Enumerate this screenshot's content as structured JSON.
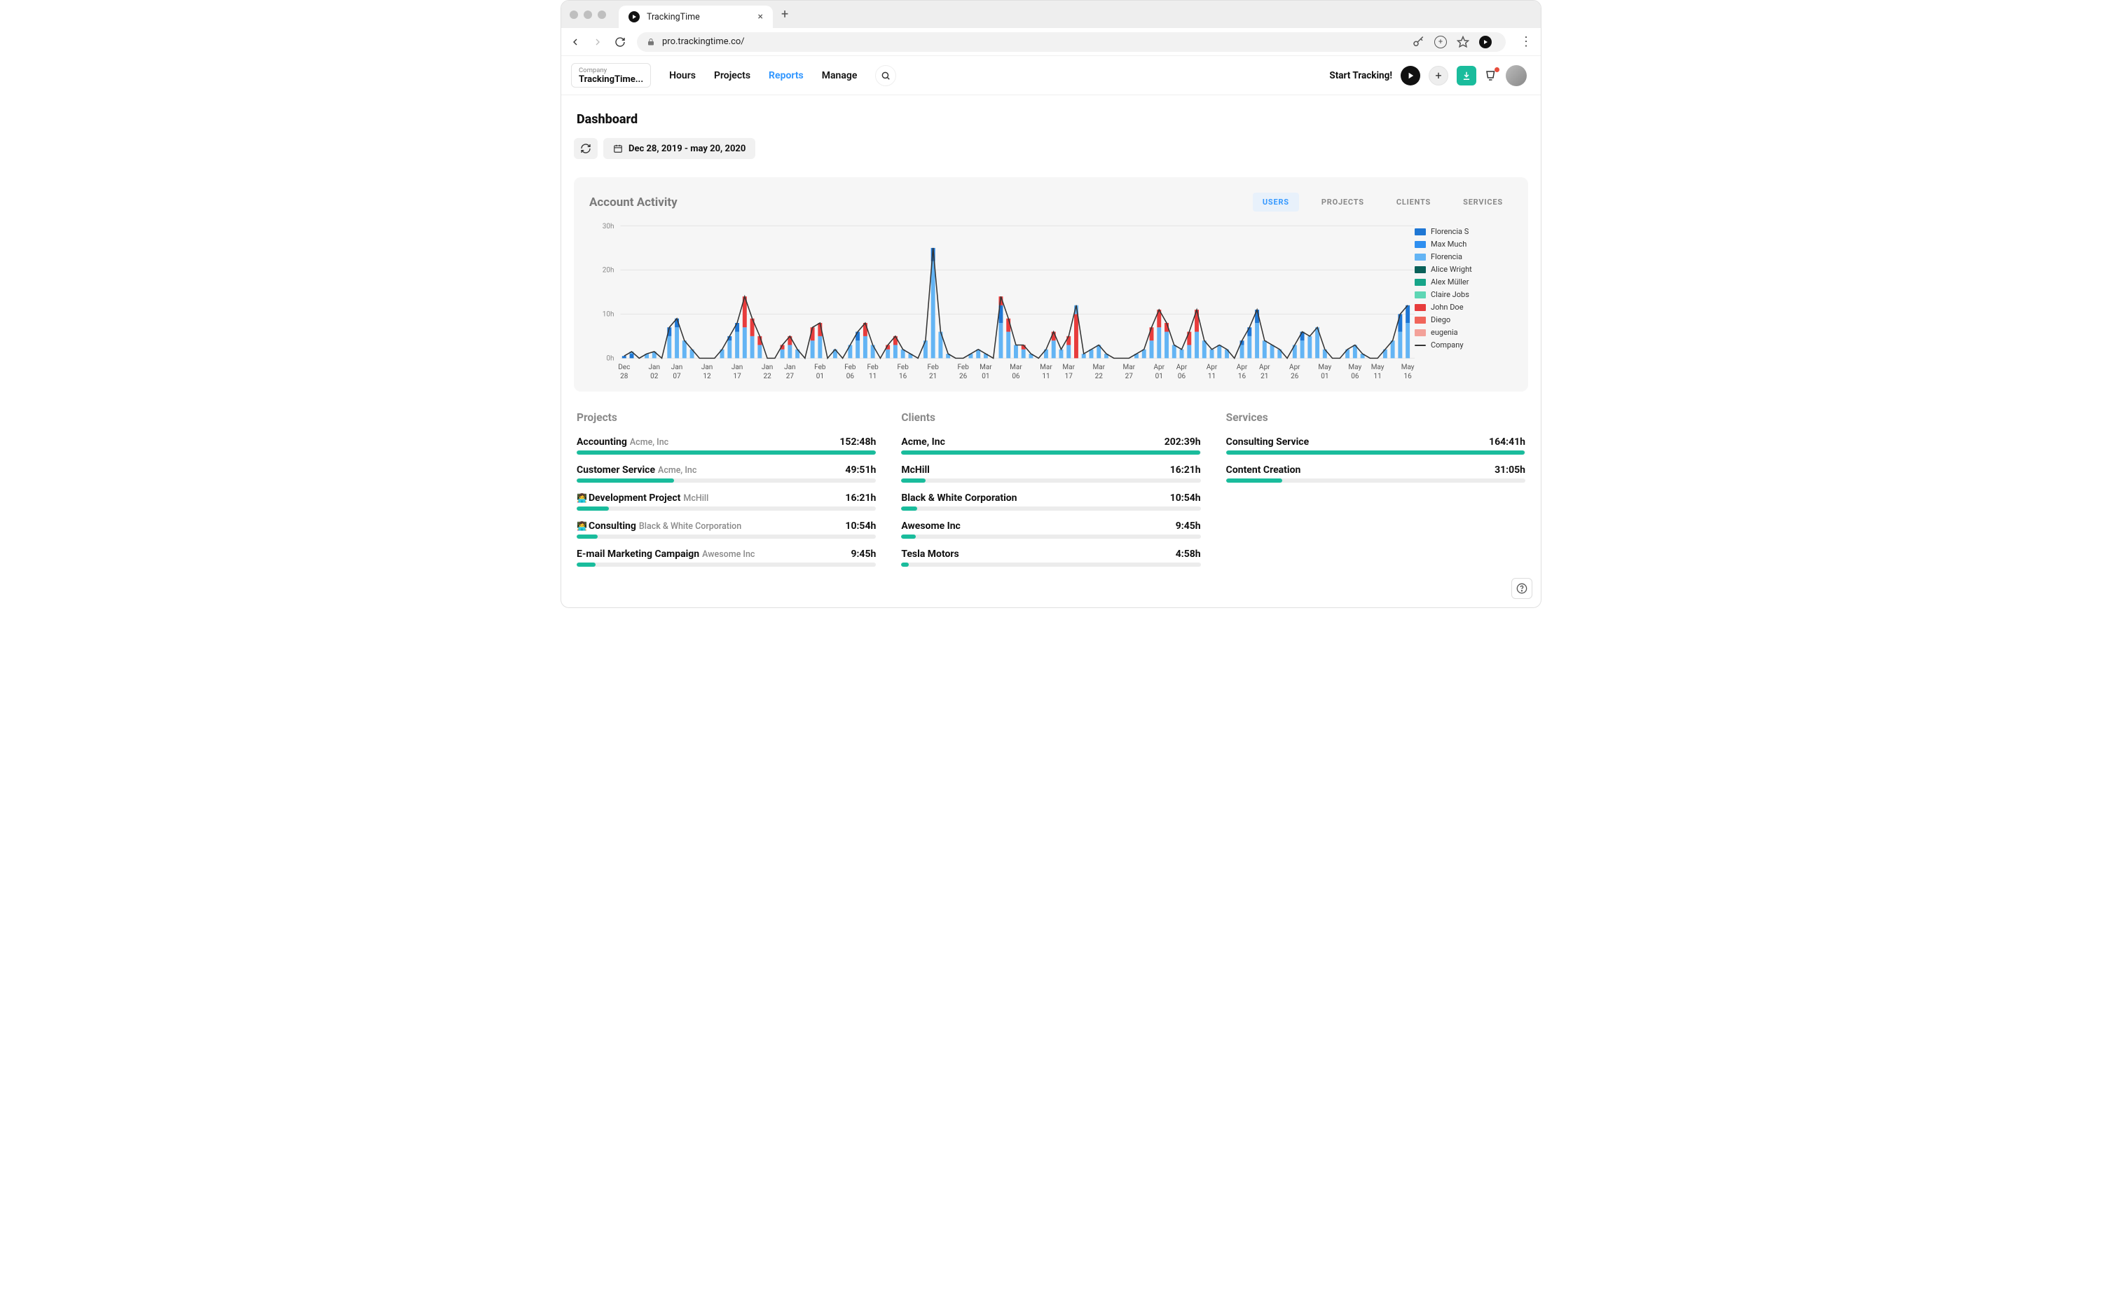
{
  "browser": {
    "tab_title": "TrackingTime",
    "url": "pro.trackingtime.co/"
  },
  "header": {
    "company_label": "Company",
    "company_name": "TrackingTime...",
    "nav": [
      {
        "label": "Hours",
        "active": false
      },
      {
        "label": "Projects",
        "active": false
      },
      {
        "label": "Reports",
        "active": true
      },
      {
        "label": "Manage",
        "active": false
      }
    ],
    "start_tracking": "Start Tracking!"
  },
  "page": {
    "title": "Dashboard",
    "date_range": "Dec 28, 2019 - may 20, 2020"
  },
  "activity": {
    "title": "Account Activity",
    "tabs": [
      {
        "label": "USERS",
        "active": true
      },
      {
        "label": "PROJECTS",
        "active": false
      },
      {
        "label": "CLIENTS",
        "active": false
      },
      {
        "label": "SERVICES",
        "active": false
      }
    ],
    "chart": {
      "type": "stacked-bar-with-line",
      "ylim": [
        0,
        30
      ],
      "ytick_step": 10,
      "y_unit": "h",
      "grid_color": "#e6e6e6",
      "background": "#f6f6f6",
      "x_labels": [
        "Dec 28",
        "Jan 02",
        "Jan 07",
        "Jan 12",
        "Jan 17",
        "Jan 22",
        "Jan 27",
        "Feb 01",
        "Feb 06",
        "Feb 11",
        "Feb 16",
        "Feb 21",
        "Feb 26",
        "Mar 01",
        "Mar 06",
        "Mar 11",
        "Mar 17",
        "Mar 22",
        "Mar 27",
        "Apr 01",
        "Apr 06",
        "Apr 11",
        "Apr 16",
        "Apr 21",
        "Apr 26",
        "May 01",
        "May 06",
        "May 11",
        "May 16"
      ],
      "line_color": "#333333",
      "series": [
        {
          "name": "Florencia S",
          "color": "#1f77d4"
        },
        {
          "name": "Max Much",
          "color": "#2e8ff0"
        },
        {
          "name": "Florencia",
          "color": "#63b4f4"
        },
        {
          "name": "Alice Wright",
          "color": "#0a6159"
        },
        {
          "name": "Alex Müller",
          "color": "#17a589"
        },
        {
          "name": "Claire Jobs",
          "color": "#5ed6b4"
        },
        {
          "name": "John Doe",
          "color": "#e73c3c"
        },
        {
          "name": "Diego",
          "color": "#f0655a"
        },
        {
          "name": "eugenia",
          "color": "#f3a199"
        }
      ],
      "company_label": "Company",
      "days": [
        {
          "stacks": [
            {
              "s": 0,
              "v": 0.5
            }
          ]
        },
        {
          "stacks": [
            {
              "s": 0,
              "v": 1
            },
            {
              "s": 2,
              "v": 0.5
            }
          ]
        },
        {
          "stacks": []
        },
        {
          "stacks": [
            {
              "s": 2,
              "v": 1
            }
          ]
        },
        {
          "stacks": [
            {
              "s": 2,
              "v": 1.5
            }
          ]
        },
        {
          "stacks": []
        },
        {
          "stacks": [
            {
              "s": 2,
              "v": 5
            },
            {
              "s": 0,
              "v": 2
            }
          ]
        },
        {
          "stacks": [
            {
              "s": 2,
              "v": 7
            },
            {
              "s": 0,
              "v": 2
            }
          ]
        },
        {
          "stacks": [
            {
              "s": 2,
              "v": 4
            }
          ]
        },
        {
          "stacks": [
            {
              "s": 2,
              "v": 2
            }
          ]
        },
        {
          "stacks": []
        },
        {
          "stacks": []
        },
        {
          "stacks": []
        },
        {
          "stacks": [
            {
              "s": 2,
              "v": 2
            }
          ]
        },
        {
          "stacks": [
            {
              "s": 2,
              "v": 4
            },
            {
              "s": 0,
              "v": 1
            }
          ]
        },
        {
          "stacks": [
            {
              "s": 2,
              "v": 6
            },
            {
              "s": 0,
              "v": 2
            }
          ]
        },
        {
          "stacks": [
            {
              "s": 2,
              "v": 7
            },
            {
              "s": 6,
              "v": 7
            }
          ]
        },
        {
          "stacks": [
            {
              "s": 2,
              "v": 5
            },
            {
              "s": 6,
              "v": 4
            }
          ]
        },
        {
          "stacks": [
            {
              "s": 2,
              "v": 3
            },
            {
              "s": 6,
              "v": 2
            }
          ]
        },
        {
          "stacks": []
        },
        {
          "stacks": []
        },
        {
          "stacks": [
            {
              "s": 2,
              "v": 2
            },
            {
              "s": 6,
              "v": 1
            }
          ]
        },
        {
          "stacks": [
            {
              "s": 2,
              "v": 3
            },
            {
              "s": 6,
              "v": 2
            }
          ]
        },
        {
          "stacks": [
            {
              "s": 2,
              "v": 2
            }
          ]
        },
        {
          "stacks": []
        },
        {
          "stacks": [
            {
              "s": 2,
              "v": 4
            },
            {
              "s": 6,
              "v": 3
            }
          ]
        },
        {
          "stacks": [
            {
              "s": 2,
              "v": 5
            },
            {
              "s": 6,
              "v": 3
            }
          ]
        },
        {
          "stbars": [
            {
              "s": 2,
              "v": 3
            }
          ]
        },
        {
          "stacks": [
            {
              "s": 2,
              "v": 2
            }
          ]
        },
        {
          "stacks": []
        },
        {
          "stacks": [
            {
              "s": 2,
              "v": 3
            }
          ]
        },
        {
          "stacks": [
            {
              "s": 2,
              "v": 4
            },
            {
              "s": 0,
              "v": 2
            }
          ]
        },
        {
          "stacks": [
            {
              "s": 2,
              "v": 5
            },
            {
              "s": 6,
              "v": 3
            }
          ]
        },
        {
          "stacks": [
            {
              "s": 2,
              "v": 3
            }
          ]
        },
        {
          "stacks": []
        },
        {
          "stacks": [
            {
              "s": 2,
              "v": 2
            },
            {
              "s": 6,
              "v": 1
            }
          ]
        },
        {
          "stacks": [
            {
              "s": 2,
              "v": 3
            },
            {
              "s": 6,
              "v": 2
            }
          ]
        },
        {
          "stacks": [
            {
              "s": 2,
              "v": 2
            }
          ]
        },
        {
          "stacks": [
            {
              "s": 2,
              "v": 1
            }
          ]
        },
        {
          "stacks": []
        },
        {
          "stacks": [
            {
              "s": 2,
              "v": 4
            }
          ]
        },
        {
          "stacks": [
            {
              "s": 2,
              "v": 22
            },
            {
              "s": 0,
              "v": 3
            }
          ]
        },
        {
          "stacks": [
            {
              "s": 2,
              "v": 6
            }
          ]
        },
        {
          "stacks": [
            {
              "s": 2,
              "v": 1
            }
          ]
        },
        {
          "stacks": []
        },
        {
          "stacks": []
        },
        {
          "stacks": [
            {
              "s": 2,
              "v": 1
            }
          ]
        },
        {
          "stacks": [
            {
              "s": 2,
              "v": 2
            }
          ]
        },
        {
          "stacks": [
            {
              "s": 2,
              "v": 1
            }
          ]
        },
        {
          "stacks": []
        },
        {
          "stacks": [
            {
              "s": 2,
              "v": 8
            },
            {
              "s": 0,
              "v": 4
            },
            {
              "s": 6,
              "v": 2
            }
          ]
        },
        {
          "stacks": [
            {
              "s": 2,
              "v": 6
            },
            {
              "s": 6,
              "v": 3
            }
          ]
        },
        {
          "stacks": [
            {
              "s": 2,
              "v": 3
            }
          ]
        },
        {
          "stacks": [
            {
              "s": 2,
              "v": 2
            },
            {
              "s": 6,
              "v": 1
            }
          ]
        },
        {
          "stacks": [
            {
              "s": 2,
              "v": 1
            }
          ]
        },
        {
          "stacks": []
        },
        {
          "stacks": [
            {
              "s": 2,
              "v": 2
            }
          ]
        },
        {
          "stacks": [
            {
              "s": 2,
              "v": 4
            },
            {
              "s": 6,
              "v": 2
            }
          ]
        },
        {
          "stacks": [
            {
              "s": 2,
              "v": 2
            }
          ]
        },
        {
          "stacks": [
            {
              "s": 2,
              "v": 3
            },
            {
              "s": 6,
              "v": 2
            }
          ]
        },
        {
          "stacks": [
            {
              "s": 6,
              "v": 10
            },
            {
              "s": 2,
              "v": 2
            }
          ]
        },
        {
          "stacks": [
            {
              "s": 2,
              "v": 1
            }
          ]
        },
        {
          "stacks": [
            {
              "s": 2,
              "v": 2
            }
          ]
        },
        {
          "stacks": [
            {
              "s": 2,
              "v": 3
            }
          ]
        },
        {
          "stacks": [
            {
              "s": 2,
              "v": 1
            }
          ]
        },
        {
          "stacks": []
        },
        {
          "stacks": []
        },
        {
          "stacks": []
        },
        {
          "stacks": [
            {
              "s": 2,
              "v": 1
            }
          ]
        },
        {
          "stacks": [
            {
              "s": 2,
              "v": 2
            }
          ]
        },
        {
          "stacks": [
            {
              "s": 2,
              "v": 4
            },
            {
              "s": 6,
              "v": 3
            }
          ]
        },
        {
          "stacks": [
            {
              "s": 2,
              "v": 7
            },
            {
              "s": 6,
              "v": 4
            }
          ]
        },
        {
          "stacks": [
            {
              "s": 2,
              "v": 6
            },
            {
              "s": 6,
              "v": 2
            }
          ]
        },
        {
          "stacks": [
            {
              "s": 2,
              "v": 3
            }
          ]
        },
        {
          "stacks": [
            {
              "s": 2,
              "v": 2
            }
          ]
        },
        {
          "stacks": [
            {
              "s": 2,
              "v": 3
            },
            {
              "s": 6,
              "v": 3
            }
          ]
        },
        {
          "stacks": [
            {
              "s": 2,
              "v": 6
            },
            {
              "s": 6,
              "v": 5
            }
          ]
        },
        {
          "stacks": [
            {
              "s": 2,
              "v": 4
            }
          ]
        },
        {
          "stacks": [
            {
              "s": 2,
              "v": 2
            }
          ]
        },
        {
          "stacks": [
            {
              "s": 2,
              "v": 3
            }
          ]
        },
        {
          "stacks": [
            {
              "s": 2,
              "v": 2
            }
          ]
        },
        {
          "stacks": []
        },
        {
          "stacks": [
            {
              "s": 2,
              "v": 3
            },
            {
              "s": 0,
              "v": 1
            }
          ]
        },
        {
          "stacks": [
            {
              "s": 2,
              "v": 5
            },
            {
              "s": 0,
              "v": 2
            }
          ]
        },
        {
          "stacks": [
            {
              "s": 2,
              "v": 8
            },
            {
              "s": 0,
              "v": 3
            }
          ]
        },
        {
          "stacks": [
            {
              "s": 2,
              "v": 4
            }
          ]
        },
        {
          "stacks": [
            {
              "s": 2,
              "v": 3
            }
          ]
        },
        {
          "stacks": [
            {
              "s": 2,
              "v": 2
            }
          ]
        },
        {
          "stacks": []
        },
        {
          "stacks": [
            {
              "s": 2,
              "v": 3
            }
          ]
        },
        {
          "stacks": [
            {
              "s": 2,
              "v": 4
            },
            {
              "s": 0,
              "v": 2
            }
          ]
        },
        {
          "stacks": [
            {
              "s": 2,
              "v": 5
            }
          ]
        },
        {
          "stacks": [
            {
              "s": 2,
              "v": 7
            }
          ]
        },
        {
          "stacks": [
            {
              "s": 2,
              "v": 2
            }
          ]
        },
        {
          "stacks": []
        },
        {
          "stacks": []
        },
        {
          "stacks": [
            {
              "s": 2,
              "v": 2
            }
          ]
        },
        {
          "stacks": [
            {
              "s": 2,
              "v": 3
            }
          ]
        },
        {
          "stacks": [
            {
              "s": 2,
              "v": 1
            }
          ]
        },
        {
          "stacks": []
        },
        {
          "stacks": []
        },
        {
          "stacks": [
            {
              "s": 2,
              "v": 2
            }
          ]
        },
        {
          "stacks": [
            {
              "s": 2,
              "v": 4
            }
          ]
        },
        {
          "stacks": [
            {
              "s": 2,
              "v": 6
            },
            {
              "s": 0,
              "v": 4
            }
          ]
        },
        {
          "stacks": [
            {
              "s": 2,
              "v": 8
            },
            {
              "s": 0,
              "v": 4
            }
          ]
        }
      ]
    }
  },
  "projects": {
    "title": "Projects",
    "bar_color": "#1abc9c",
    "max": 153,
    "items": [
      {
        "name": "Accounting",
        "sub": "Acme, Inc",
        "hours": "152:48h",
        "v": 152.8,
        "emoji": ""
      },
      {
        "name": "Customer Service",
        "sub": "Acme, Inc",
        "hours": "49:51h",
        "v": 49.85,
        "emoji": ""
      },
      {
        "name": "Development Project",
        "sub": "McHill",
        "hours": "16:21h",
        "v": 16.35,
        "emoji": "👩‍💻"
      },
      {
        "name": "Consulting",
        "sub": "Black & White Corporation",
        "hours": "10:54h",
        "v": 10.9,
        "emoji": "👩‍💻"
      },
      {
        "name": "E-mail Marketing Campaign",
        "sub": "Awesome Inc",
        "hours": "9:45h",
        "v": 9.75,
        "emoji": ""
      }
    ]
  },
  "clients": {
    "title": "Clients",
    "bar_color": "#1abc9c",
    "max": 203,
    "items": [
      {
        "name": "Acme, Inc",
        "sub": "",
        "hours": "202:39h",
        "v": 202.65
      },
      {
        "name": "McHill",
        "sub": "",
        "hours": "16:21h",
        "v": 16.35
      },
      {
        "name": "Black & White Corporation",
        "sub": "",
        "hours": "10:54h",
        "v": 10.9
      },
      {
        "name": "Awesome Inc",
        "sub": "",
        "hours": "9:45h",
        "v": 9.75
      },
      {
        "name": "Tesla Motors",
        "sub": "",
        "hours": "4:58h",
        "v": 4.97
      }
    ]
  },
  "services": {
    "title": "Services",
    "bar_color": "#1abc9c",
    "max": 165,
    "items": [
      {
        "name": "Consulting Service",
        "sub": "",
        "hours": "164:41h",
        "v": 164.68
      },
      {
        "name": "Content Creation",
        "sub": "",
        "hours": "31:05h",
        "v": 31.08
      }
    ]
  }
}
